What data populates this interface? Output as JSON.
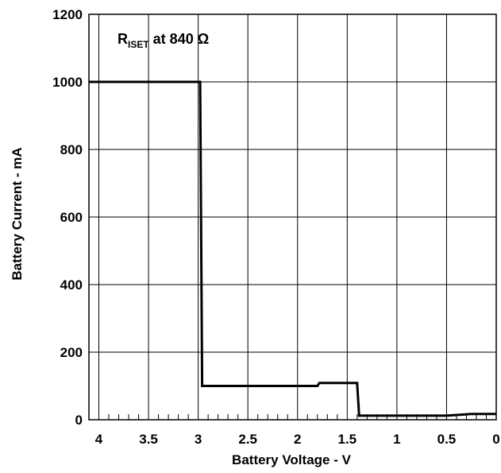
{
  "chart_data": {
    "type": "line",
    "title": "",
    "xlabel": "Battery Voltage - V",
    "ylabel": "Battery Current - mA",
    "xlim": [
      4.1,
      0
    ],
    "ylim": [
      0,
      1200
    ],
    "x_reversed": true,
    "grid": true,
    "x_ticks": [
      4,
      3.5,
      3,
      2.5,
      2,
      1.5,
      1,
      0.5,
      0
    ],
    "x_tick_labels": [
      "4",
      "3.5",
      "3",
      "2.5",
      "2",
      "1.5",
      "1",
      "0.5",
      "0"
    ],
    "x_minor_step": 0.1,
    "y_ticks": [
      0,
      200,
      400,
      600,
      800,
      1000,
      1200
    ],
    "y_tick_labels": [
      "0",
      "200",
      "400",
      "600",
      "800",
      "1000",
      "1200"
    ],
    "annotation": {
      "main": "R",
      "subscript": "ISET",
      "rest": " at 840 Ω"
    },
    "series": [
      {
        "color": "#000000",
        "points": [
          [
            4.1,
            1000
          ],
          [
            2.98,
            1000
          ],
          [
            2.96,
            100
          ],
          [
            1.8,
            100
          ],
          [
            1.78,
            109
          ],
          [
            1.4,
            109
          ],
          [
            1.38,
            12
          ],
          [
            0.5,
            12
          ],
          [
            0.25,
            17
          ],
          [
            0,
            17
          ]
        ]
      }
    ]
  }
}
